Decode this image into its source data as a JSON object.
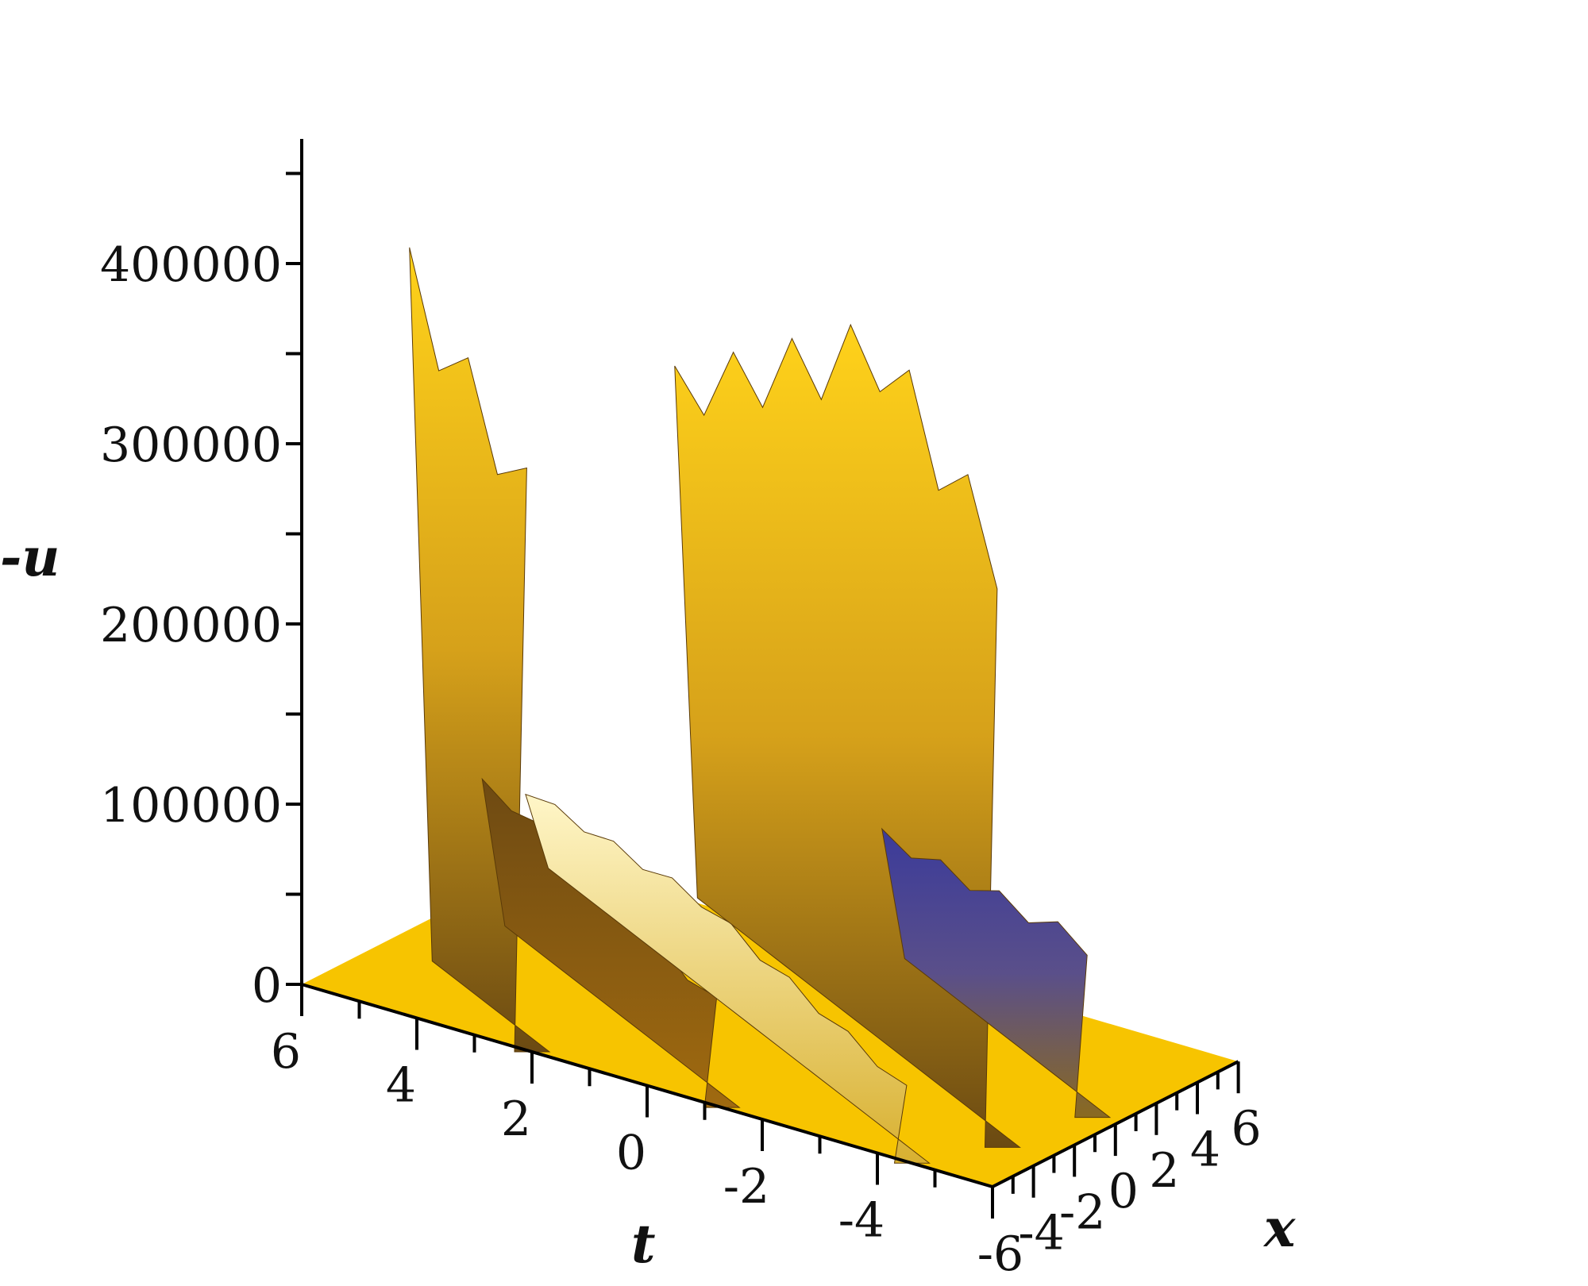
{
  "chart_data": {
    "type": "surface3d",
    "zlabel": "-u",
    "xlabel": "x",
    "tlabel": "t",
    "z_ticks": [
      0,
      100000,
      200000,
      300000,
      400000
    ],
    "z_tick_labels": [
      "0",
      "100000",
      "200000",
      "300000",
      "400000"
    ],
    "t_ticks": [
      6,
      4,
      2,
      0,
      -2,
      -4
    ],
    "t_tick_labels": [
      "6",
      "4",
      "2",
      "0",
      "-2",
      "-4"
    ],
    "x_ticks": [
      -6,
      -4,
      -2,
      0,
      2,
      4,
      6
    ],
    "x_tick_labels": [
      "-6",
      "-4",
      "-2",
      "0",
      "2",
      "4",
      "6"
    ],
    "t_range": [
      -6,
      6
    ],
    "x_range": [
      -6,
      6
    ],
    "z_range": [
      0,
      470000
    ],
    "colors": {
      "surface": "#f7c400",
      "ridge_dark": "#8a5a10",
      "ridge_light": "#fff3b0",
      "low_blue": "#3a3a8c"
    },
    "ridges": [
      {
        "t_center": 5.6,
        "peak": 110000,
        "color": "blue"
      },
      {
        "t_center": 2.0,
        "peak": 450000,
        "color": "gold"
      },
      {
        "t_center": -1.3,
        "peak": 85000,
        "color": "dark"
      },
      {
        "t_center": -4.6,
        "peak": 60000,
        "color": "light"
      },
      {
        "t_center": -7.7,
        "peak": 410000,
        "color": "gold"
      },
      {
        "t_center": -11.3,
        "peak": 100000,
        "color": "blue"
      }
    ]
  }
}
